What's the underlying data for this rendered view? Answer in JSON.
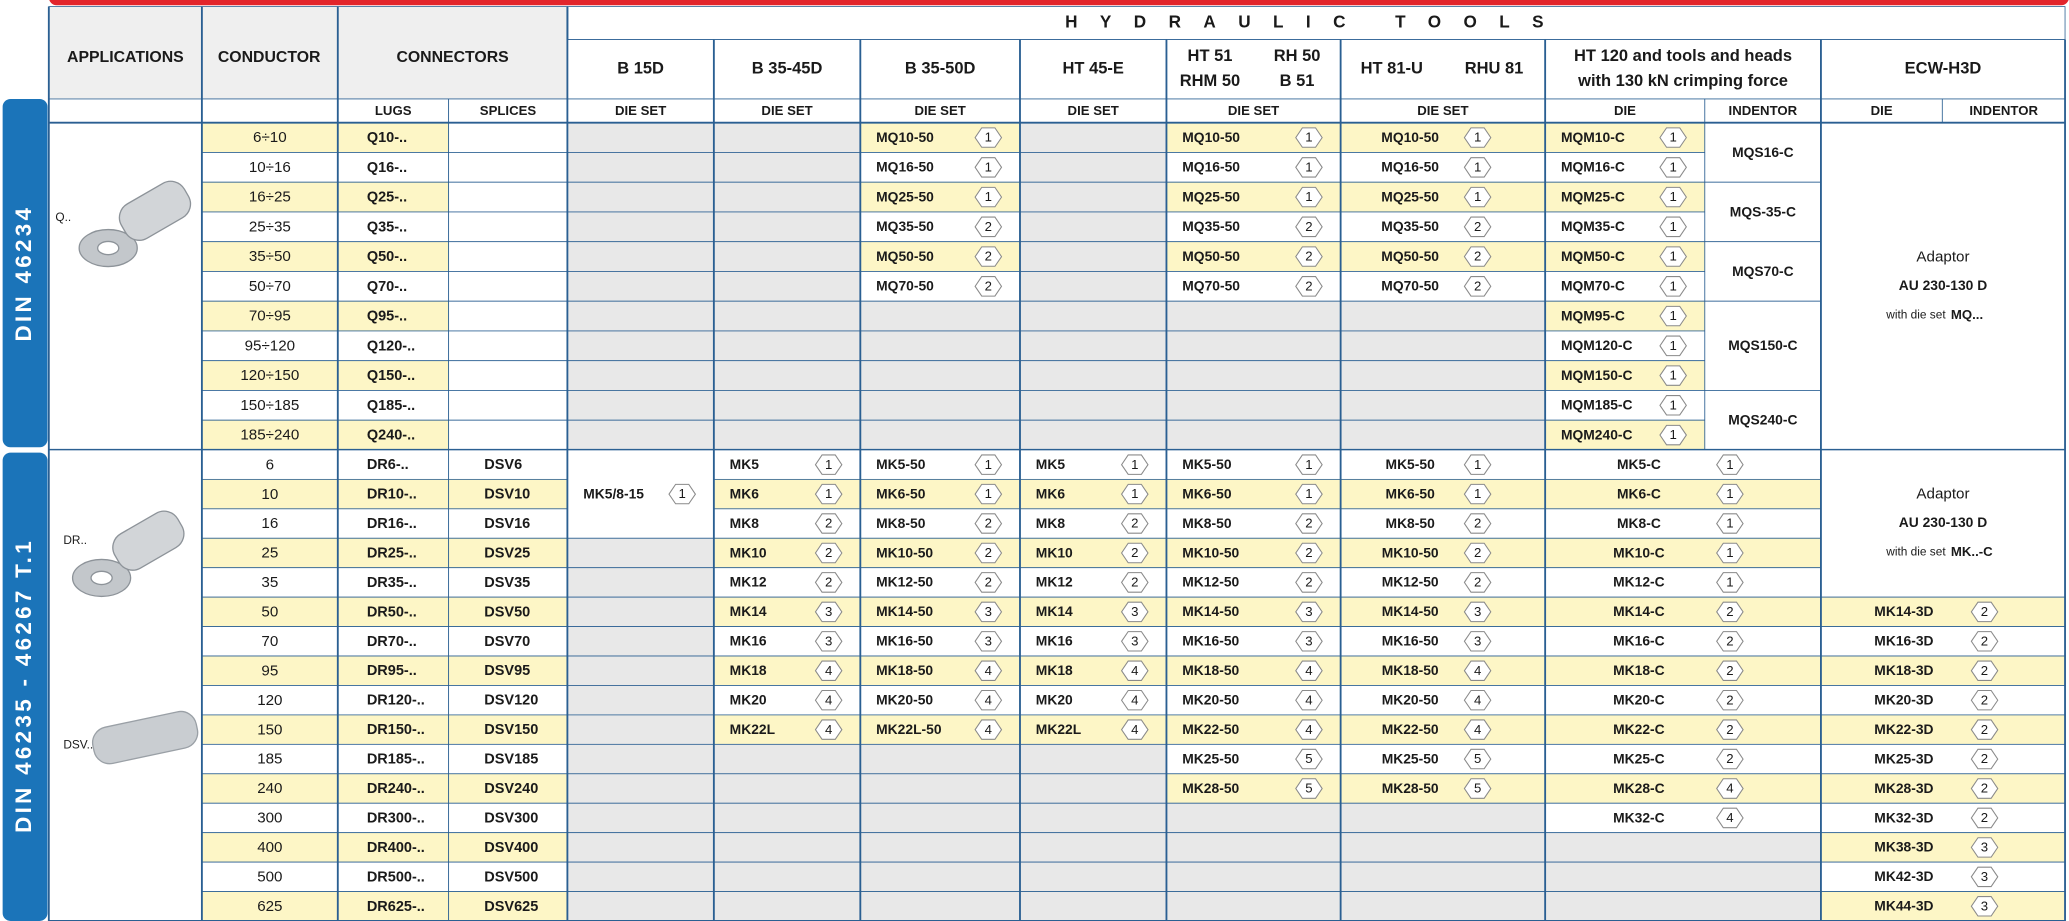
{
  "header": {
    "tools_group": "HYDRAULIC TOOLS",
    "applications": "APPLICATIONS",
    "conductor": "CONDUCTOR",
    "connectors": "CONNECTORS",
    "lugs": "LUGS",
    "splices": "SPLICES",
    "tools": [
      {
        "name": [
          [
            "B 15D"
          ]
        ],
        "sub": [
          "DIE SET"
        ]
      },
      {
        "name": [
          [
            "B 35-45D"
          ]
        ],
        "sub": [
          "DIE SET"
        ]
      },
      {
        "name": [
          [
            "B 35-50D"
          ]
        ],
        "sub": [
          "DIE SET"
        ]
      },
      {
        "name": [
          [
            "HT 45-E"
          ]
        ],
        "sub": [
          "DIE SET"
        ]
      },
      {
        "name": [
          [
            "HT 51",
            "RH 50"
          ],
          [
            "RHM 50",
            "B 51"
          ]
        ],
        "sub": [
          "DIE SET"
        ]
      },
      {
        "name": [
          [
            "HT 81-U",
            "RHU 81"
          ]
        ],
        "sub": [
          "DIE SET"
        ]
      },
      {
        "name": [
          [
            "HT 120 and tools and heads"
          ],
          [
            "with 130 kN crimping force"
          ]
        ],
        "sub": [
          "DIE",
          "INDENTOR"
        ]
      },
      {
        "name": [
          [
            "ECW-H3D"
          ]
        ],
        "sub": [
          "DIE",
          "INDENTOR"
        ]
      }
    ]
  },
  "sections": [
    {
      "standard": "DIN 46234",
      "labels": [
        "Q.."
      ],
      "columns": {
        "conductor": [
          "6÷10",
          "10÷16",
          "16÷25",
          "25÷35",
          "35÷50",
          "50÷70",
          "70÷95",
          "95÷120",
          "120÷150",
          "150÷185",
          "185÷240"
        ],
        "lugs": [
          "Q10-..",
          "Q16-..",
          "Q25-..",
          "Q35-..",
          "Q50-..",
          "Q70-..",
          "Q95-..",
          "Q120-..",
          "Q150-..",
          "Q185-..",
          "Q240-.."
        ],
        "b35_50d": [
          {
            "die": "MQ10-50",
            "no": 1
          },
          {
            "die": "MQ16-50",
            "no": 1
          },
          {
            "die": "MQ25-50",
            "no": 1
          },
          {
            "die": "MQ35-50",
            "no": 2
          },
          {
            "die": "MQ50-50",
            "no": 2
          },
          {
            "die": "MQ70-50",
            "no": 2
          },
          null,
          null,
          null,
          null,
          null
        ],
        "ht51": [
          {
            "die": "MQ10-50",
            "no": 1
          },
          {
            "die": "MQ16-50",
            "no": 1
          },
          {
            "die": "MQ25-50",
            "no": 1
          },
          {
            "die": "MQ35-50",
            "no": 2
          },
          {
            "die": "MQ50-50",
            "no": 2
          },
          {
            "die": "MQ70-50",
            "no": 2
          },
          null,
          null,
          null,
          null,
          null
        ],
        "ht81": [
          {
            "die": "MQ10-50",
            "no": 1
          },
          {
            "die": "MQ16-50",
            "no": 1
          },
          {
            "die": "MQ25-50",
            "no": 1
          },
          {
            "die": "MQ35-50",
            "no": 2
          },
          {
            "die": "MQ50-50",
            "no": 2
          },
          {
            "die": "MQ70-50",
            "no": 2
          },
          null,
          null,
          null,
          null,
          null
        ],
        "ht120_die": [
          {
            "die": "MQM10-C",
            "no": 1
          },
          {
            "die": "MQM16-C",
            "no": 1
          },
          {
            "die": "MQM25-C",
            "no": 1
          },
          {
            "die": "MQM35-C",
            "no": 1
          },
          {
            "die": "MQM50-C",
            "no": 1
          },
          {
            "die": "MQM70-C",
            "no": 1
          },
          {
            "die": "MQM95-C",
            "no": 1
          },
          {
            "die": "MQM120-C",
            "no": 1
          },
          {
            "die": "MQM150-C",
            "no": 1
          },
          {
            "die": "MQM185-C",
            "no": 1
          },
          {
            "die": "MQM240-C",
            "no": 1
          }
        ],
        "ht120_indentor": [
          "MQS16-C",
          "MQS-35-C",
          "MQS70-C",
          "MQS150-C",
          "MQS240-C"
        ],
        "ecw": [
          {
            "adaptor": "Adaptor",
            "model": "AU 230-130 D",
            "note": "with die set",
            "die": "MQ..."
          }
        ]
      }
    },
    {
      "standard": "DIN 46235 - 46267 T.1",
      "labels": [
        "DR..",
        "DSV.."
      ],
      "columns": {
        "conductor": [
          "6",
          "10",
          "16",
          "25",
          "35",
          "50",
          "70",
          "95",
          "120",
          "150",
          "185",
          "240",
          "300",
          "400",
          "500",
          "625"
        ],
        "lugs": [
          "DR6-..",
          "DR10-..",
          "DR16-..",
          "DR25-..",
          "DR35-..",
          "DR50-..",
          "DR70-..",
          "DR95-..",
          "DR120-..",
          "DR150-..",
          "DR185-..",
          "DR240-..",
          "DR300-..",
          "DR400-..",
          "DR500-..",
          "DR625-.."
        ],
        "splices": [
          "DSV6",
          "DSV10",
          "DSV16",
          "DSV25",
          "DSV35",
          "DSV50",
          "DSV70",
          "DSV95",
          "DSV120",
          "DSV150",
          "DSV185",
          "DSV240",
          "DSV300",
          "DSV400",
          "DSV500",
          "DSV625"
        ],
        "b15d": [
          {
            "die": "MK5/8-15",
            "no": 1
          },
          null,
          null,
          null,
          null,
          null,
          null,
          null,
          null,
          null,
          null,
          null,
          null,
          null
        ],
        "b35_45d": [
          {
            "die": "MK5",
            "no": 1
          },
          {
            "die": "MK6",
            "no": 1
          },
          {
            "die": "MK8",
            "no": 2
          },
          {
            "die": "MK10",
            "no": 2
          },
          {
            "die": "MK12",
            "no": 2
          },
          {
            "die": "MK14",
            "no": 3
          },
          {
            "die": "MK16",
            "no": 3
          },
          {
            "die": "MK18",
            "no": 4
          },
          {
            "die": "MK20",
            "no": 4
          },
          {
            "die": "MK22L",
            "no": 4
          },
          null,
          null,
          null,
          null,
          null,
          null
        ],
        "b35_50d": [
          {
            "die": "MK5-50",
            "no": 1
          },
          {
            "die": "MK6-50",
            "no": 1
          },
          {
            "die": "MK8-50",
            "no": 2
          },
          {
            "die": "MK10-50",
            "no": 2
          },
          {
            "die": "MK12-50",
            "no": 2
          },
          {
            "die": "MK14-50",
            "no": 3
          },
          {
            "die": "MK16-50",
            "no": 3
          },
          {
            "die": "MK18-50",
            "no": 4
          },
          {
            "die": "MK20-50",
            "no": 4
          },
          {
            "die": "MK22L-50",
            "no": 4
          },
          null,
          null,
          null,
          null,
          null,
          null
        ],
        "ht45e": [
          {
            "die": "MK5",
            "no": 1
          },
          {
            "die": "MK6",
            "no": 1
          },
          {
            "die": "MK8",
            "no": 2
          },
          {
            "die": "MK10",
            "no": 2
          },
          {
            "die": "MK12",
            "no": 2
          },
          {
            "die": "MK14",
            "no": 3
          },
          {
            "die": "MK16",
            "no": 3
          },
          {
            "die": "MK18",
            "no": 4
          },
          {
            "die": "MK20",
            "no": 4
          },
          {
            "die": "MK22L",
            "no": 4
          },
          null,
          null,
          null,
          null,
          null,
          null
        ],
        "ht51": [
          {
            "die": "MK5-50",
            "no": 1
          },
          {
            "die": "MK6-50",
            "no": 1
          },
          {
            "die": "MK8-50",
            "no": 2
          },
          {
            "die": "MK10-50",
            "no": 2
          },
          {
            "die": "MK12-50",
            "no": 2
          },
          {
            "die": "MK14-50",
            "no": 3
          },
          {
            "die": "MK16-50",
            "no": 3
          },
          {
            "die": "MK18-50",
            "no": 4
          },
          {
            "die": "MK20-50",
            "no": 4
          },
          {
            "die": "MK22-50",
            "no": 4
          },
          {
            "die": "MK25-50",
            "no": 5
          },
          {
            "die": "MK28-50",
            "no": 5
          },
          null,
          null,
          null,
          null
        ],
        "ht81": [
          {
            "die": "MK5-50",
            "no": 1
          },
          {
            "die": "MK6-50",
            "no": 1
          },
          {
            "die": "MK8-50",
            "no": 2
          },
          {
            "die": "MK10-50",
            "no": 2
          },
          {
            "die": "MK12-50",
            "no": 2
          },
          {
            "die": "MK14-50",
            "no": 3
          },
          {
            "die": "MK16-50",
            "no": 3
          },
          {
            "die": "MK18-50",
            "no": 4
          },
          {
            "die": "MK20-50",
            "no": 4
          },
          {
            "die": "MK22-50",
            "no": 4
          },
          {
            "die": "MK25-50",
            "no": 5
          },
          {
            "die": "MK28-50",
            "no": 5
          },
          null,
          null,
          null,
          null
        ],
        "ht120": [
          {
            "die": "MK5-C",
            "no": 1
          },
          {
            "die": "MK6-C",
            "no": 1
          },
          {
            "die": "MK8-C",
            "no": 1
          },
          {
            "die": "MK10-C",
            "no": 1
          },
          {
            "die": "MK12-C",
            "no": 1
          },
          {
            "die": "MK14-C",
            "no": 2
          },
          {
            "die": "MK16-C",
            "no": 2
          },
          {
            "die": "MK18-C",
            "no": 2
          },
          {
            "die": "MK20-C",
            "no": 2
          },
          {
            "die": "MK22-C",
            "no": 2
          },
          {
            "die": "MK25-C",
            "no": 2
          },
          {
            "die": "MK28-C",
            "no": 4
          },
          {
            "die": "MK32-C",
            "no": 4
          },
          null,
          null,
          null
        ],
        "ecw": [
          {
            "adaptor": "Adaptor",
            "model": "AU 230-130 D",
            "note": "with die set",
            "die": "MK..-C"
          },
          {
            "die": "MK14-3D",
            "no": 2
          },
          {
            "die": "MK16-3D",
            "no": 2
          },
          {
            "die": "MK18-3D",
            "no": 2
          },
          {
            "die": "MK20-3D",
            "no": 2
          },
          {
            "die": "MK22-3D",
            "no": 2
          },
          {
            "die": "MK25-3D",
            "no": 2
          },
          {
            "die": "MK28-3D",
            "no": 2
          },
          {
            "die": "MK32-3D",
            "no": 2
          },
          {
            "die": "MK38-3D",
            "no": 3
          },
          {
            "die": "MK42-3D",
            "no": 3
          },
          {
            "die": "MK44-3D",
            "no": 3
          }
        ]
      }
    }
  ]
}
